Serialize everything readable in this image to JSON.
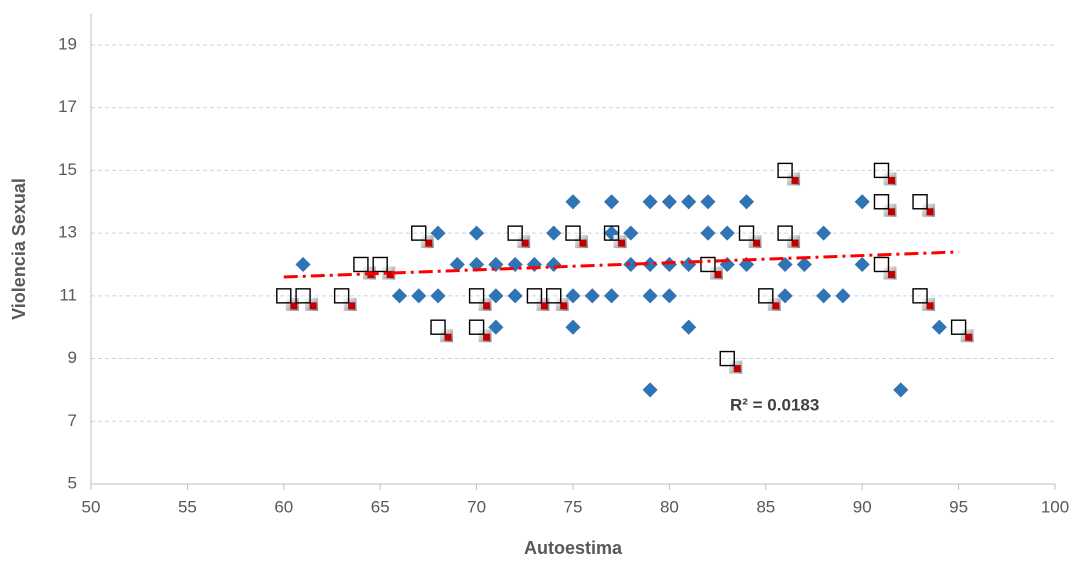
{
  "chart_data": {
    "type": "scatter",
    "x_label": "Autoestima",
    "y_label": "Violencia Sexual",
    "xlim": [
      50,
      100
    ],
    "xticks": [
      50,
      55,
      60,
      65,
      70,
      75,
      80,
      85,
      90,
      95,
      100
    ],
    "ylim": [
      5,
      20
    ],
    "yticks": [
      5,
      7,
      9,
      11,
      13,
      15,
      17,
      19
    ],
    "grid": true,
    "series": [
      {
        "color": "#2e75b6",
        "marker": "diamond",
        "x": [
          61,
          66,
          67,
          68,
          68,
          69,
          70,
          70,
          71,
          71,
          71,
          72,
          72,
          73,
          74,
          74,
          75,
          75,
          75,
          76,
          77,
          77,
          77,
          78,
          78,
          79,
          79,
          79,
          79,
          80,
          80,
          80,
          81,
          81,
          81,
          82,
          82,
          83,
          83,
          84,
          84,
          86,
          86,
          87,
          88,
          88,
          89,
          90,
          90,
          92,
          94
        ],
        "values": [
          12,
          11,
          11,
          11,
          13,
          12,
          12,
          13,
          12,
          11,
          10,
          12,
          11,
          12,
          12,
          13,
          14,
          11,
          10,
          11,
          14,
          13,
          11,
          13,
          12,
          14,
          12,
          11,
          8,
          14,
          12,
          11,
          14,
          12,
          10,
          14,
          13,
          13,
          12,
          14,
          12,
          12,
          11,
          12,
          13,
          11,
          11,
          14,
          12,
          8,
          10
        ]
      },
      {
        "color": "#c00000",
        "marker": "square",
        "x": [
          60,
          61,
          63,
          64,
          65,
          67,
          68,
          70,
          70,
          72,
          73,
          74,
          75,
          77,
          82,
          83,
          84,
          85,
          86,
          86,
          91,
          91,
          91,
          93,
          93,
          95
        ],
        "values": [
          11,
          11,
          11,
          12,
          12,
          13,
          10,
          11,
          10,
          13,
          11,
          11,
          13,
          13,
          12,
          9,
          13,
          11,
          15,
          13,
          15,
          14,
          12,
          14,
          11,
          10
        ]
      }
    ],
    "trendline": {
      "x": [
        60,
        95
      ],
      "values": [
        11.6,
        12.4
      ],
      "color": "#ff0000"
    },
    "annotation": "R² = 0.0183"
  }
}
